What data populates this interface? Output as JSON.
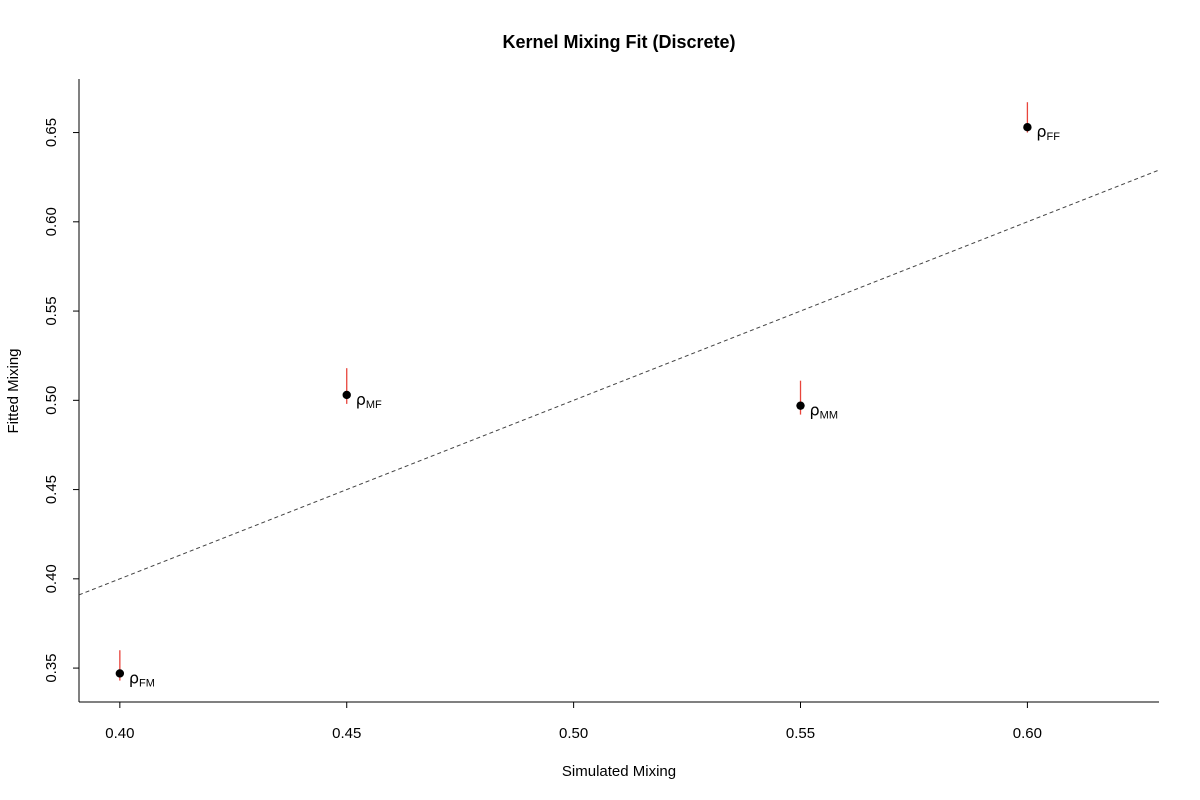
{
  "chart_data": {
    "type": "scatter",
    "title": "Kernel Mixing Fit (Discrete)",
    "xlabel": "Simulated Mixing",
    "ylabel": "Fitted Mixing",
    "xlim": [
      0.391,
      0.629
    ],
    "ylim": [
      0.331,
      0.68
    ],
    "xticks": [
      "0.40",
      "0.45",
      "0.50",
      "0.55",
      "0.60"
    ],
    "yticks": [
      "0.35",
      "0.40",
      "0.45",
      "0.50",
      "0.55",
      "0.60",
      "0.65"
    ],
    "grid": false,
    "legend": "none",
    "reference_line": {
      "type": "identity",
      "style": "dashed",
      "color": "#444444"
    },
    "points": [
      {
        "x": 0.4,
        "y": 0.347,
        "err_low": 0.343,
        "err_high": 0.36,
        "label_symbol": "ρ",
        "label_sub": "FM"
      },
      {
        "x": 0.45,
        "y": 0.503,
        "err_low": 0.498,
        "err_high": 0.518,
        "label_symbol": "ρ",
        "label_sub": "MF"
      },
      {
        "x": 0.55,
        "y": 0.497,
        "err_low": 0.492,
        "err_high": 0.511,
        "label_symbol": "ρ",
        "label_sub": "MM"
      },
      {
        "x": 0.6,
        "y": 0.653,
        "err_low": 0.65,
        "err_high": 0.667,
        "label_symbol": "ρ",
        "label_sub": "FF"
      }
    ],
    "colors": {
      "point": "#000000",
      "errorbar": "#e8453c",
      "axis": "#000000"
    }
  }
}
